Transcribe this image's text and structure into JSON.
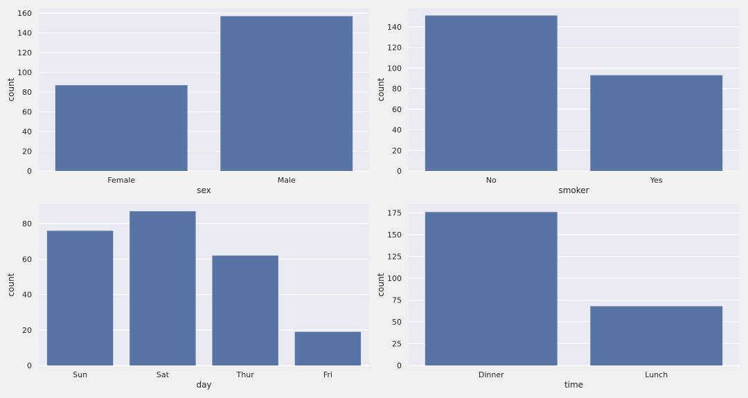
{
  "colors": {
    "bar": "#5874a5",
    "plot_background": "#eaeaf2",
    "grid": "#ffffff",
    "figure_background": "#f0f0f0"
  },
  "chart_data": [
    {
      "type": "bar",
      "categories": [
        "Female",
        "Male"
      ],
      "values": [
        87,
        157
      ],
      "xlabel": "sex",
      "ylabel": "count",
      "ylim": [
        0,
        165
      ],
      "yticks": [
        0,
        20,
        40,
        60,
        80,
        100,
        120,
        140,
        160
      ],
      "grid": true
    },
    {
      "type": "bar",
      "categories": [
        "No",
        "Yes"
      ],
      "values": [
        151,
        93
      ],
      "xlabel": "smoker",
      "ylabel": "count",
      "ylim": [
        0,
        158
      ],
      "yticks": [
        0,
        20,
        40,
        60,
        80,
        100,
        120,
        140
      ],
      "grid": true
    },
    {
      "type": "bar",
      "categories": [
        "Sun",
        "Sat",
        "Thur",
        "Fri"
      ],
      "values": [
        76,
        87,
        62,
        19
      ],
      "xlabel": "day",
      "ylabel": "count",
      "ylim": [
        0,
        91
      ],
      "yticks": [
        0,
        20,
        40,
        60,
        80
      ],
      "grid": true
    },
    {
      "type": "bar",
      "categories": [
        "Dinner",
        "Lunch"
      ],
      "values": [
        176,
        68
      ],
      "xlabel": "time",
      "ylabel": "count",
      "ylim": [
        0,
        185
      ],
      "yticks": [
        0,
        25,
        50,
        75,
        100,
        125,
        150,
        175
      ],
      "grid": true
    }
  ]
}
